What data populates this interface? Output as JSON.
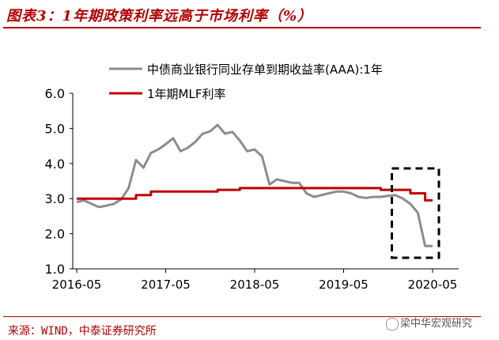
{
  "title": "图表3：1年期政策利率远高于市场利率（%）",
  "source": "来源：WIND，中泰证券研究所",
  "watermark": "梁中华宏观研究",
  "colors": {
    "accent": "#b30000",
    "series_gray": "#8c8c8c",
    "series_red": "#c00000"
  },
  "chart_data": {
    "type": "line",
    "ylim": [
      1.0,
      6.0
    ],
    "yticks": [
      "1.0",
      "2.0",
      "3.0",
      "4.0",
      "5.0",
      "6.0"
    ],
    "xticks": [
      "2016-05",
      "2017-05",
      "2018-05",
      "2019-05",
      "2020-05"
    ],
    "grid": false,
    "legend": "top",
    "annotations": [
      "dashed box highlighting early 2020"
    ],
    "series": [
      {
        "name": "中债商业银行同业存单到期收益率(AAA):1年",
        "color": "#8c8c8c",
        "points": [
          [
            "2016-05",
            2.9
          ],
          [
            "2016-06",
            2.95
          ],
          [
            "2016-07",
            2.85
          ],
          [
            "2016-08",
            2.76
          ],
          [
            "2016-09",
            2.8
          ],
          [
            "2016-10",
            2.85
          ],
          [
            "2016-11",
            2.98
          ],
          [
            "2016-12",
            3.3
          ],
          [
            "2017-01",
            4.1
          ],
          [
            "2017-02",
            3.88
          ],
          [
            "2017-03",
            4.3
          ],
          [
            "2017-04",
            4.4
          ],
          [
            "2017-05",
            4.55
          ],
          [
            "2017-06",
            4.72
          ],
          [
            "2017-07",
            4.35
          ],
          [
            "2017-08",
            4.45
          ],
          [
            "2017-09",
            4.62
          ],
          [
            "2017-10",
            4.85
          ],
          [
            "2017-11",
            4.92
          ],
          [
            "2017-12",
            5.1
          ],
          [
            "2018-01",
            4.85
          ],
          [
            "2018-02",
            4.9
          ],
          [
            "2018-03",
            4.65
          ],
          [
            "2018-04",
            4.35
          ],
          [
            "2018-05",
            4.4
          ],
          [
            "2018-06",
            4.2
          ],
          [
            "2018-07",
            3.4
          ],
          [
            "2018-08",
            3.55
          ],
          [
            "2018-09",
            3.5
          ],
          [
            "2018-10",
            3.45
          ],
          [
            "2018-11",
            3.45
          ],
          [
            "2018-12",
            3.15
          ],
          [
            "2019-01",
            3.05
          ],
          [
            "2019-02",
            3.1
          ],
          [
            "2019-03",
            3.15
          ],
          [
            "2019-04",
            3.2
          ],
          [
            "2019-05",
            3.2
          ],
          [
            "2019-06",
            3.15
          ],
          [
            "2019-07",
            3.05
          ],
          [
            "2019-08",
            3.02
          ],
          [
            "2019-09",
            3.05
          ],
          [
            "2019-10",
            3.05
          ],
          [
            "2019-11",
            3.08
          ],
          [
            "2019-12",
            3.1
          ],
          [
            "2020-01",
            3.0
          ],
          [
            "2020-02",
            2.85
          ],
          [
            "2020-03",
            2.6
          ],
          [
            "2020-04",
            1.65
          ],
          [
            "2020-05",
            1.65
          ]
        ]
      },
      {
        "name": "1年期MLF利率",
        "color": "#c00000",
        "points": [
          [
            "2016-05",
            3.0
          ],
          [
            "2017-01",
            3.0
          ],
          [
            "2017-01",
            3.1
          ],
          [
            "2017-03",
            3.1
          ],
          [
            "2017-03",
            3.2
          ],
          [
            "2017-12",
            3.2
          ],
          [
            "2017-12",
            3.25
          ],
          [
            "2018-03",
            3.25
          ],
          [
            "2018-03",
            3.3
          ],
          [
            "2019-10",
            3.3
          ],
          [
            "2019-10",
            3.25
          ],
          [
            "2020-02",
            3.25
          ],
          [
            "2020-02",
            3.15
          ],
          [
            "2020-04",
            3.15
          ],
          [
            "2020-04",
            2.95
          ],
          [
            "2020-05",
            2.95
          ]
        ]
      }
    ]
  }
}
